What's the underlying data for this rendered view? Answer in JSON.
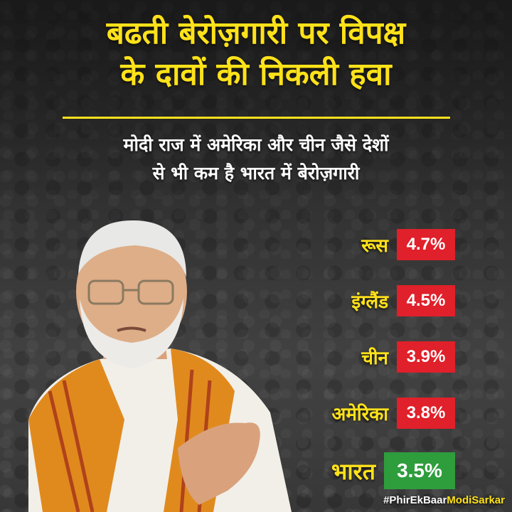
{
  "title": {
    "line1": "बढती बेरोज़गारी पर विपक्ष",
    "line2": "के दावों की निकली हवा"
  },
  "subtitle": {
    "line1": "मोदी राज में अमेरिका और चीन जैसे देशों",
    "line2": "से भी कम है भारत में बेरोज़गारी"
  },
  "stats": [
    {
      "country": "रूस",
      "value": "4.7%"
    },
    {
      "country": "इंग्लैंड",
      "value": "4.5%"
    },
    {
      "country": "चीन",
      "value": "3.9%"
    },
    {
      "country": "अमेरिका",
      "value": "3.8%"
    },
    {
      "country": "भारत",
      "value": "3.5%"
    }
  ],
  "hashtag": {
    "prefix": "#PhirEkBaar",
    "accent": "ModiSarkar"
  },
  "colors": {
    "title": "#ffe21a",
    "badge_red": "#e0202a",
    "badge_green": "#2e9d3c"
  }
}
